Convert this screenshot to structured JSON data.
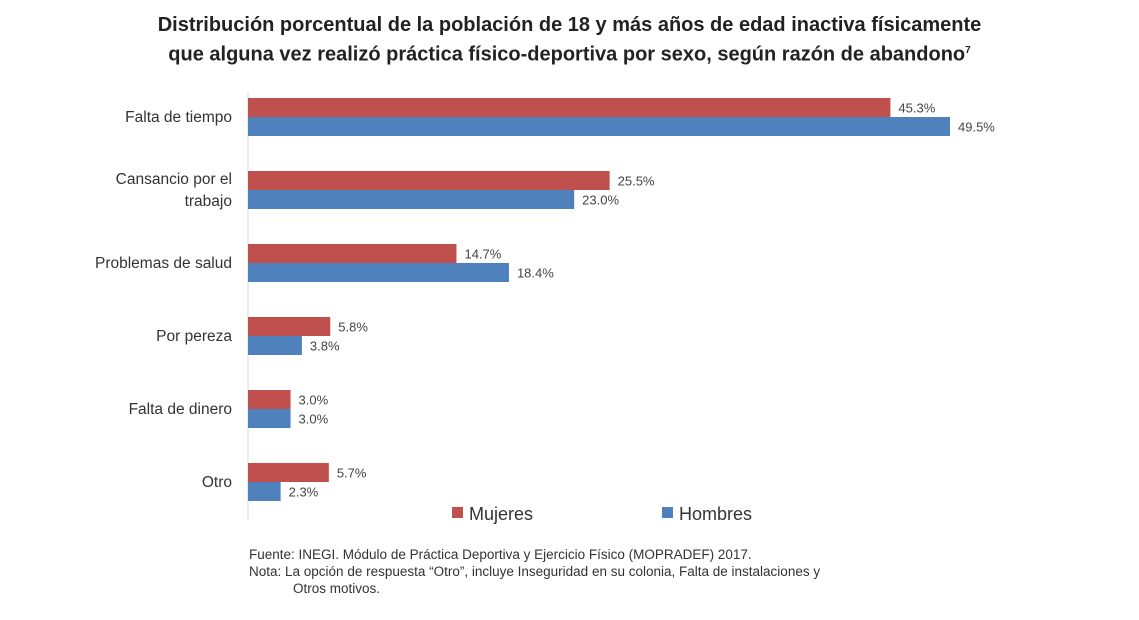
{
  "chart_data": {
    "type": "bar",
    "orientation": "horizontal",
    "title_line1": "Distribución porcentual de la población de 18 y más años de edad inactiva físicamente",
    "title_line2": "que alguna vez realizó práctica físico-deportiva por sexo, según razón de abandono",
    "title_footnote": "7",
    "categories": [
      [
        "Falta de tiempo"
      ],
      [
        "Cansancio por el",
        "trabajo"
      ],
      [
        "Problemas de salud"
      ],
      [
        "Por pereza"
      ],
      [
        "Falta de dinero"
      ],
      [
        "Otro"
      ]
    ],
    "series": [
      {
        "name": "Mujeres",
        "color": "#c0504d",
        "values": [
          45.3,
          25.5,
          14.7,
          5.8,
          3.0,
          5.7
        ],
        "labels": [
          "45.3%",
          "25.5%",
          "14.7%",
          "5.8%",
          "3.0%",
          "5.7%"
        ]
      },
      {
        "name": "Hombres",
        "color": "#4f81bd",
        "values": [
          49.5,
          23.0,
          18.4,
          3.8,
          3.0,
          2.3
        ],
        "labels": [
          "49.5%",
          "23.0%",
          "18.4%",
          "3.8%",
          "3.0%",
          "2.3%"
        ]
      }
    ],
    "xlim": [
      0,
      50
    ],
    "legend": "bottom",
    "grid": false
  },
  "notes": {
    "source": "Fuente: INEGI. Módulo de Práctica Deportiva y Ejercicio Físico (MOPRADEF) 2017.",
    "note_line1": "Nota: La opción de respuesta “Otro”, incluye Inseguridad en su colonia, Falta de instalaciones y",
    "note_line2": "Otros motivos."
  }
}
